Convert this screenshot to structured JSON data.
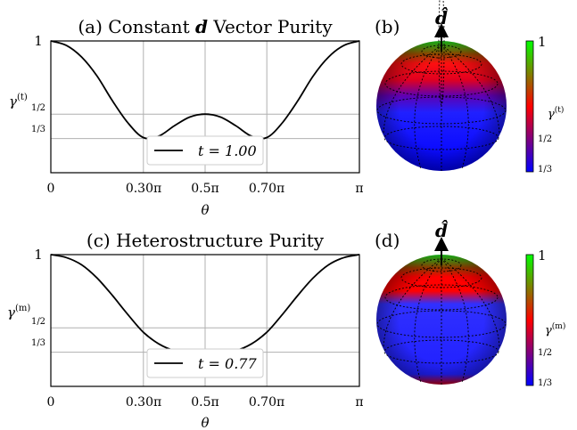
{
  "figure": {
    "panels": [
      {
        "id": "a",
        "title_letter": "(a)",
        "title_pre": "Constant",
        "title_bold": "d",
        "title_post": "Vector Purity",
        "ylabel_sym": "γ",
        "ylabel_sup": "(t)",
        "legend": "t = 1.00",
        "xlabel": "θ",
        "xticks": [
          "0",
          "0.30π",
          "0.5π",
          "0.70π",
          "π"
        ],
        "yticks": [
          "1",
          "1/2",
          "1/3"
        ]
      },
      {
        "id": "c",
        "title_letter": "(c)",
        "title_pre": "Heterostructure Purity",
        "title_bold": "",
        "title_post": "",
        "ylabel_sym": "γ",
        "ylabel_sup": "(m)",
        "legend": "t = 0.77",
        "xlabel": "θ",
        "xticks": [
          "0",
          "0.30π",
          "0.5π",
          "0.70π",
          "π"
        ],
        "yticks": [
          "1",
          "1/2",
          "1/3"
        ]
      }
    ],
    "spheres": [
      {
        "label": "(b)",
        "vector": "d̂",
        "cbar_top": "1",
        "cbar_label_sym": "γ",
        "cbar_label_sup": "(t)",
        "cbar_ticks": [
          "1/2",
          "1/3"
        ]
      },
      {
        "label": "(d)",
        "vector": "d̂",
        "cbar_top": "1",
        "cbar_label_sym": "γ",
        "cbar_label_sup": "(m)",
        "cbar_ticks": [
          "1/2",
          "1/3"
        ]
      }
    ],
    "colors": {
      "high": "#00ff00",
      "mid": "#ff0000",
      "low": "#0000ff",
      "grid": "#b0b0b0"
    }
  },
  "chart_data": [
    {
      "type": "line",
      "title": "(a) Constant d Vector Purity",
      "xlabel": "θ",
      "ylabel": "γ^(t)",
      "xlim": [
        0,
        3.14159
      ],
      "ylim": [
        0.1,
        1
      ],
      "xtick_values": [
        0,
        0.9425,
        1.5708,
        2.1991,
        3.14159
      ],
      "ytick_values": [
        1,
        0.5,
        0.3333
      ],
      "grid": true,
      "legend_position": "bottom-center",
      "series": [
        {
          "name": "t = 1.00",
          "x": [
            0,
            0.157,
            0.314,
            0.471,
            0.628,
            0.785,
            0.942,
            1.1,
            1.257,
            1.414,
            1.571,
            1.728,
            1.885,
            2.042,
            2.199,
            2.356,
            2.513,
            2.67,
            2.827,
            2.985,
            3.142
          ],
          "y": [
            1.0,
            0.97,
            0.89,
            0.76,
            0.59,
            0.44,
            0.34,
            0.35,
            0.42,
            0.48,
            0.5,
            0.48,
            0.42,
            0.35,
            0.34,
            0.44,
            0.59,
            0.76,
            0.89,
            0.97,
            1.0
          ]
        }
      ]
    },
    {
      "type": "line",
      "title": "(c) Heterostructure Purity",
      "xlabel": "θ",
      "ylabel": "γ^(m)",
      "xlim": [
        0,
        3.14159
      ],
      "ylim": [
        0.1,
        1
      ],
      "xtick_values": [
        0,
        0.9425,
        1.5708,
        2.1991,
        3.14159
      ],
      "ytick_values": [
        1,
        0.5,
        0.3333
      ],
      "grid": true,
      "legend_position": "bottom-center",
      "series": [
        {
          "name": "t = 0.77",
          "x": [
            0,
            0.157,
            0.314,
            0.471,
            0.628,
            0.785,
            0.942,
            1.1,
            1.257,
            1.414,
            1.571,
            1.728,
            1.885,
            2.042,
            2.199,
            2.356,
            2.513,
            2.67,
            2.827,
            2.985,
            3.142
          ],
          "y": [
            1.0,
            0.98,
            0.93,
            0.84,
            0.72,
            0.59,
            0.47,
            0.39,
            0.345,
            0.335,
            0.333,
            0.335,
            0.345,
            0.39,
            0.47,
            0.59,
            0.72,
            0.84,
            0.93,
            0.98,
            1.0
          ]
        }
      ]
    }
  ]
}
